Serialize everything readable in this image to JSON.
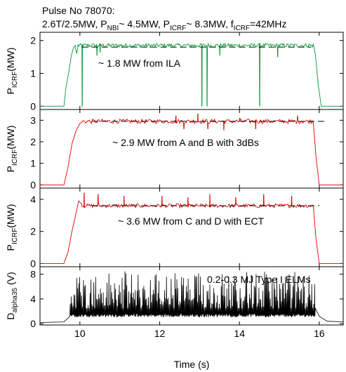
{
  "header": {
    "title": "Pulse No 78070:",
    "subtitle_parts": {
      "a": "2.6T/2.5MW, P",
      "a_sub": "NBI",
      "b": "~ 4.5MW, P",
      "b_sub": "ICRF",
      "c": "~ 8.3MW, f",
      "c_sub": "ICRF",
      "d": "=42MHz"
    }
  },
  "colors": {
    "ila_trace": "#009933",
    "ab_trace": "#dd0000",
    "cd_trace": "#dd0000",
    "dalpha_trace": "#000000",
    "reference_dash": "#000000"
  },
  "chart_data": [
    {
      "type": "line",
      "panel": 1,
      "ylabel_main": "P",
      "ylabel_sub": "ICRF",
      "ylabel_unit": "(MW)",
      "ylim": [
        -0.1,
        2.25
      ],
      "yticks": [
        0,
        1,
        2
      ],
      "ytick_labels": [
        "0",
        "1",
        "2"
      ],
      "xlim": [
        9.0,
        16.6
      ],
      "annotation": "~ 1.8 MW from ILA",
      "series": [
        {
          "style": "solid",
          "color_key": "ila_trace",
          "segments": [
            {
              "x": [
                9.0,
                9.6,
                9.65,
                9.73,
                9.78,
                9.83,
                9.88,
                9.92,
                9.95
              ],
              "y": [
                0,
                0,
                0.55,
                1.1,
                1.5,
                1.75,
                1.85,
                1.6,
                1.8
              ]
            },
            {
              "x": [
                9.95,
                15.85
              ],
              "y_mean": 1.85,
              "y_noise": 0.06,
              "n": 280
            },
            {
              "x": [
                15.85,
                15.9,
                15.98,
                16.05,
                16.6
              ],
              "y": [
                1.9,
                1.6,
                0.6,
                0,
                0
              ]
            }
          ],
          "dips": [
            {
              "x": 10.05,
              "y": 0
            },
            {
              "x": 10.42,
              "y": 1.55
            },
            {
              "x": 10.5,
              "y": 1.65
            },
            {
              "x": 13.05,
              "y": 0
            },
            {
              "x": 13.18,
              "y": 0
            },
            {
              "x": 13.5,
              "y": 1.55
            },
            {
              "x": 14.5,
              "y": 0
            },
            {
              "x": 14.95,
              "y": 1.5
            }
          ]
        },
        {
          "style": "dashed",
          "color_key": "reference_dash",
          "x": [
            10.05,
            15.8
          ],
          "y": [
            1.8,
            1.8
          ]
        }
      ]
    },
    {
      "type": "line",
      "panel": 2,
      "ylabel_main": "P",
      "ylabel_sub": "ICRF",
      "ylabel_unit": "(MW)",
      "ylim": [
        -0.15,
        3.5
      ],
      "yticks": [
        0,
        1,
        2,
        3
      ],
      "ytick_labels": [
        "0",
        "1",
        "2",
        "3"
      ],
      "xlim": [
        9.0,
        16.6
      ],
      "annotation": "~ 2.9 MW from A and B with 3dBs",
      "series": [
        {
          "style": "solid",
          "color_key": "ab_trace",
          "segments": [
            {
              "x": [
                9.0,
                9.6,
                9.7,
                9.8,
                9.9,
                10.0,
                10.05
              ],
              "y": [
                0,
                0,
                0.8,
                1.9,
                2.5,
                2.85,
                2.9
              ]
            },
            {
              "x": [
                10.05,
                15.85
              ],
              "y_mean": 2.95,
              "y_noise": 0.1,
              "n": 220
            },
            {
              "x": [
                15.85,
                15.92,
                16.0,
                16.6
              ],
              "y": [
                2.9,
                1.3,
                0,
                0
              ]
            }
          ],
          "spikes": [
            {
              "x": 12.4,
              "y": 3.2
            },
            {
              "x": 12.6,
              "y": 2.6
            },
            {
              "x": 12.95,
              "y": 3.3
            },
            {
              "x": 13.2,
              "y": 2.6
            },
            {
              "x": 13.6,
              "y": 2.55
            },
            {
              "x": 14.0,
              "y": 3.1
            },
            {
              "x": 14.4,
              "y": 2.6
            },
            {
              "x": 15.45,
              "y": 3.2
            }
          ]
        },
        {
          "style": "dashed",
          "color_key": "reference_dash",
          "x": [
            10.3,
            16.2
          ],
          "y": [
            2.95,
            2.95
          ]
        }
      ]
    },
    {
      "type": "line",
      "panel": 3,
      "ylabel_main": "P",
      "ylabel_sub": "ICRF",
      "ylabel_unit": "(MW)",
      "ylim": [
        -0.2,
        4.7
      ],
      "yticks": [
        0,
        2,
        4
      ],
      "ytick_labels": [
        "0",
        "2",
        "4"
      ],
      "xlim": [
        9.0,
        16.6
      ],
      "annotation": "~ 3.6 MW from C and D with ECT",
      "series": [
        {
          "style": "solid",
          "color_key": "cd_trace",
          "segments": [
            {
              "x": [
                9.0,
                9.6,
                9.7,
                9.8,
                9.9,
                9.97,
                10.05
              ],
              "y": [
                0,
                0,
                0.7,
                2.0,
                3.1,
                3.9,
                3.7
              ]
            },
            {
              "x": [
                10.05,
                15.85
              ],
              "y_mean": 3.6,
              "y_noise": 0.12,
              "n": 220
            },
            {
              "x": [
                15.85,
                15.92,
                16.0,
                16.6
              ],
              "y": [
                3.6,
                1.5,
                0,
                0
              ]
            }
          ],
          "spikes": [
            {
              "x": 10.1,
              "y": 4.4
            },
            {
              "x": 10.45,
              "y": 4.3
            },
            {
              "x": 11.1,
              "y": 4.2
            },
            {
              "x": 12.05,
              "y": 4.2
            },
            {
              "x": 12.7,
              "y": 4.1
            },
            {
              "x": 13.25,
              "y": 4.3
            },
            {
              "x": 13.9,
              "y": 4.1
            },
            {
              "x": 14.6,
              "y": 4.3
            },
            {
              "x": 15.3,
              "y": 4.2
            }
          ]
        },
        {
          "style": "dashed",
          "color_key": "reference_dash",
          "x": [
            10.3,
            16.0
          ],
          "y": [
            3.6,
            3.6
          ]
        }
      ]
    },
    {
      "type": "line",
      "panel": 4,
      "ylabel_main": "D",
      "ylabel_sub": "alpha35",
      "ylabel_unit": " (V)",
      "ylim": [
        -0.2,
        9.2
      ],
      "yticks": [
        0,
        4,
        8
      ],
      "ytick_labels": [
        "0",
        "4",
        "8"
      ],
      "xlim": [
        9.0,
        16.6
      ],
      "xticks": [
        10,
        12,
        14,
        16
      ],
      "xtick_labels": [
        "10",
        "12",
        "14",
        "16"
      ],
      "xlabel": "Time (s)",
      "annotation": "0.2-0.3 MJ Type I ELMs",
      "series": [
        {
          "style": "elm-bursts",
          "color_key": "dalpha_trace",
          "baseline": {
            "x": [
              9.0,
              9.6,
              9.75
            ],
            "y": [
              0.2,
              0.3,
              1.2
            ]
          },
          "burst_range": [
            9.75,
            15.9
          ],
          "burst_baseline": 1.1,
          "burst_peak_range": [
            2.5,
            8.5
          ],
          "burst_count": 260,
          "tail": {
            "x": [
              15.9,
              16.0,
              16.1,
              16.2,
              16.6
            ],
            "y": [
              2.5,
              1.2,
              0.8,
              0.4,
              0.3
            ]
          }
        }
      ]
    }
  ]
}
